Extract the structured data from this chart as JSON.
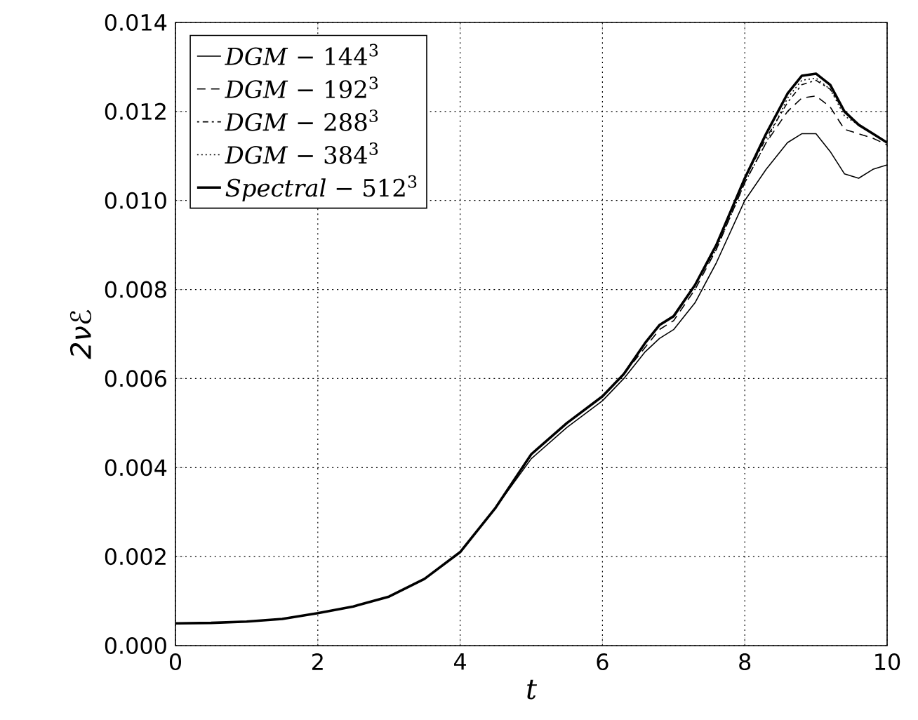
{
  "chart_data": {
    "type": "line",
    "xlabel": "t",
    "ylabel": "2νℰ",
    "xlim": [
      0,
      10
    ],
    "ylim": [
      0,
      0.014
    ],
    "xticks": [
      0,
      2,
      4,
      6,
      8,
      10
    ],
    "yticks": [
      {
        "value": 0,
        "label": "0.000"
      },
      {
        "value": 0.002,
        "label": "0.002"
      },
      {
        "value": 0.004,
        "label": "0.004"
      },
      {
        "value": 0.006,
        "label": "0.006"
      },
      {
        "value": 0.008,
        "label": "0.008"
      },
      {
        "value": 0.01,
        "label": "0.010"
      },
      {
        "value": 0.012,
        "label": "0.012"
      },
      {
        "value": 0.014,
        "label": "0.014"
      }
    ],
    "grid": true,
    "legend": "top left",
    "marker": "none",
    "x": [
      0,
      0.5,
      1,
      1.5,
      2,
      2.5,
      3,
      3.5,
      4,
      4.5,
      5,
      5.5,
      6,
      6.3,
      6.6,
      6.8,
      7,
      7.3,
      7.6,
      8,
      8.3,
      8.6,
      8.8,
      9,
      9.2,
      9.4,
      9.6,
      9.8,
      10
    ],
    "series": [
      {
        "name": "*DGM* − 144$^{3}$",
        "color": "#000000",
        "line_style": "solid",
        "values": [
          0.0005,
          0.00051,
          0.00054,
          0.0006,
          0.00073,
          0.00088,
          0.0011,
          0.0015,
          0.0021,
          0.0031,
          0.0042,
          0.0049,
          0.0055,
          0.006,
          0.0066,
          0.0069,
          0.0071,
          0.0077,
          0.0086,
          0.01,
          0.0107,
          0.0113,
          0.0115,
          0.0115,
          0.0111,
          0.0106,
          0.0105,
          0.0107,
          0.0108
        ]
      },
      {
        "name": "*DGM* − 192$^{3}$",
        "color": "#000000",
        "line_style": "dashed",
        "values": [
          0.0005,
          0.00051,
          0.00054,
          0.0006,
          0.00073,
          0.00088,
          0.0011,
          0.0015,
          0.0021,
          0.0031,
          0.0043,
          0.005,
          0.0056,
          0.0061,
          0.0067,
          0.0071,
          0.0073,
          0.008,
          0.0089,
          0.0104,
          0.0113,
          0.012,
          0.0123,
          0.01235,
          0.0121,
          0.0116,
          0.0115,
          0.0114,
          0.01125
        ]
      },
      {
        "name": "*DGM* − 288$^{3}$",
        "color": "#000000",
        "line_style": "dashdot",
        "values": [
          0.0005,
          0.00051,
          0.00054,
          0.0006,
          0.00073,
          0.00088,
          0.0011,
          0.0015,
          0.0021,
          0.0031,
          0.0043,
          0.005,
          0.0056,
          0.0061,
          0.0068,
          0.0072,
          0.0074,
          0.0081,
          0.009,
          0.0105,
          0.0114,
          0.0122,
          0.0126,
          0.0127,
          0.0125,
          0.012,
          0.0117,
          0.0115,
          0.0113
        ]
      },
      {
        "name": "*DGM* − 384$^{3}$",
        "color": "#000000",
        "line_style": "dotted",
        "values": [
          0.0005,
          0.00051,
          0.00054,
          0.0006,
          0.00073,
          0.00088,
          0.0011,
          0.0015,
          0.0021,
          0.0031,
          0.0043,
          0.005,
          0.0056,
          0.0061,
          0.0068,
          0.0072,
          0.0074,
          0.0081,
          0.0089,
          0.0104,
          0.0113,
          0.0123,
          0.0127,
          0.01275,
          0.0125,
          0.0119,
          0.0117,
          0.0115,
          0.0113
        ]
      },
      {
        "name": "*Spectral* − 512$^{3}$",
        "color": "#000000",
        "line_style": "solid",
        "values": [
          0.0005,
          0.00051,
          0.00054,
          0.0006,
          0.00073,
          0.00088,
          0.0011,
          0.0015,
          0.0021,
          0.0031,
          0.0043,
          0.005,
          0.0056,
          0.0061,
          0.0068,
          0.0072,
          0.0074,
          0.0081,
          0.009,
          0.0105,
          0.0115,
          0.0124,
          0.0128,
          0.01285,
          0.0126,
          0.012,
          0.0117,
          0.0115,
          0.0113
        ]
      }
    ]
  }
}
